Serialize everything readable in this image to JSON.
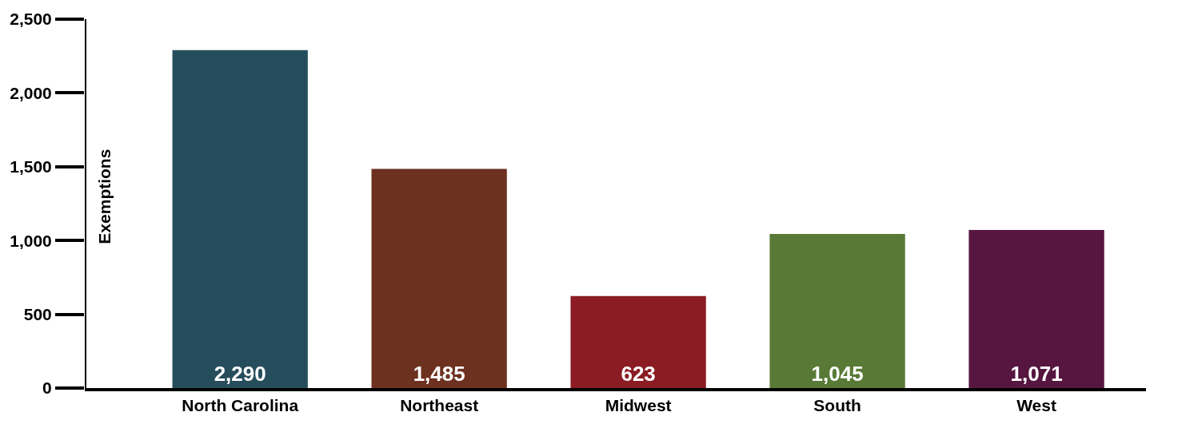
{
  "chart_data": {
    "type": "bar",
    "ylabel": "Exemptions",
    "categories": [
      "North Carolina",
      "Northeast",
      "Midwest",
      "South",
      "West"
    ],
    "values": [
      2290,
      1485,
      623,
      1045,
      1071
    ],
    "colors": [
      "#264d5c",
      "#6d3120",
      "#8b1c24",
      "#587a36",
      "#561640"
    ],
    "ylim": [
      0,
      2500
    ],
    "yticks": [
      {
        "value": 0,
        "label": "0"
      },
      {
        "value": 500,
        "label": "500"
      },
      {
        "value": 1000,
        "label": "1,000"
      },
      {
        "value": 1500,
        "label": "1,500"
      },
      {
        "value": 2000,
        "label": "2,000"
      },
      {
        "value": 2500,
        "label": "2,500"
      }
    ],
    "value_labels": [
      "2,290",
      "1,485",
      "623",
      "1,045",
      "1,071"
    ]
  }
}
